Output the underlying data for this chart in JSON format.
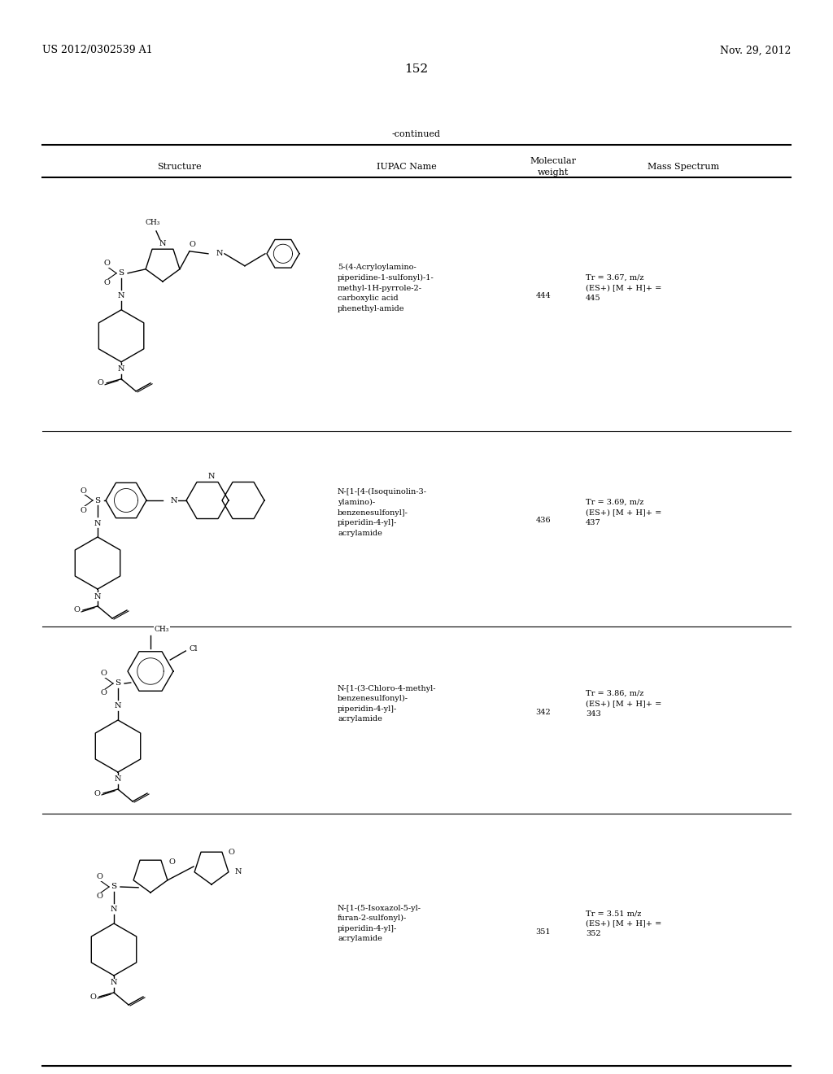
{
  "header_left": "US 2012/0302539 A1",
  "header_right": "Nov. 29, 2012",
  "page_number": "152",
  "continued_label": "-continued",
  "col_structure": "Structure",
  "col_iupac": "IUPAC Name",
  "col_mw_line1": "Molecular",
  "col_mw_line2": "weight",
  "col_ms": "Mass Spectrum",
  "rows": [
    {
      "iupac": "5-(4-Acryloylamino-\npiperidine-1-sulfonyl)-1-\nmethyl-1H-pyrrole-2-\ncarboxylic acid\nphenethyl-amide",
      "mol_weight": "444",
      "mass_spectrum": "Tr = 3.67, m/z\n(ES+) [M + H]+ =\n445"
    },
    {
      "iupac": "N-[1-[4-(Isoquinolin-3-\nylamino)-\nbenzenesulfonyl]-\npiperidin-4-yl]-\nacrylamide",
      "mol_weight": "436",
      "mass_spectrum": "Tr = 3.69, m/z\n(ES+) [M + H]+ =\n437"
    },
    {
      "iupac": "N-[1-(3-Chloro-4-methyl-\nbenzenesulfonyl)-\npiperidin-4-yl]-\nacrylamide",
      "mol_weight": "342",
      "mass_spectrum": "Tr = 3.86, m/z\n(ES+) [M + H]+ =\n343"
    },
    {
      "iupac": "N-[1-(5-Isoxazol-5-yl-\nfuran-2-sulfonyl)-\npiperidin-4-yl]-\nacrylamide",
      "mol_weight": "351",
      "mass_spectrum": "Tr = 3.51 m/z\n(ES+) [M + H]+ =\n352"
    }
  ],
  "bg_color": "#ffffff",
  "text_color": "#000000",
  "font_size_header": 9,
  "font_size_table": 7.5,
  "font_size_page": 10
}
